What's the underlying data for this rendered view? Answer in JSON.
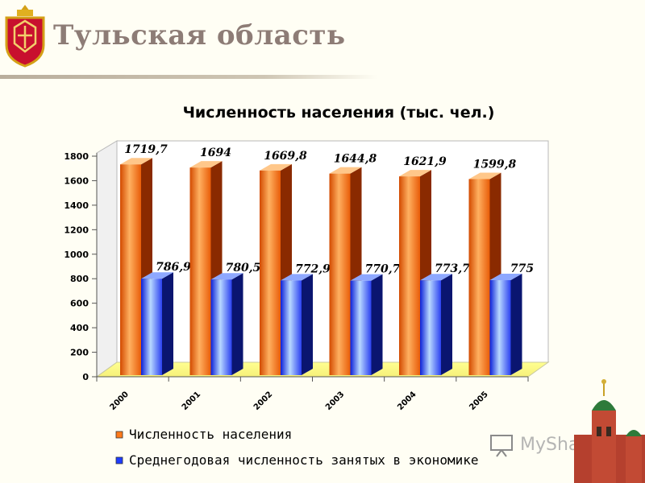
{
  "header": {
    "title": "Тульская  область"
  },
  "watermark": {
    "text": "MyShared"
  },
  "colors": {
    "orange": "#ff7a1a",
    "blue": "#1f3cff",
    "title_text": "#8d7c76"
  },
  "chart_data": {
    "type": "bar",
    "title": "Численность населения (тыс. чел.)",
    "categories": [
      "2000",
      "2001",
      "2002",
      "2003",
      "2004",
      "2005"
    ],
    "series": [
      {
        "name": "Численность населения",
        "color": "#ff7a1a",
        "values": [
          1719.7,
          1694,
          1669.8,
          1644.8,
          1621.9,
          1599.8
        ],
        "labels": [
          "1719,7",
          "1694",
          "1669,8",
          "1644,8",
          "1621,9",
          "1599,8"
        ]
      },
      {
        "name": "Среднегодовая численность занятых в экономике",
        "color": "#1f3cff",
        "values": [
          786.9,
          780.5,
          772.9,
          770.7,
          773.7,
          775
        ],
        "labels": [
          "786,9",
          "780,5",
          "772,9",
          "770,7",
          "773,7",
          "775"
        ]
      }
    ],
    "ylim": [
      0,
      1800
    ],
    "yticks": [
      "0",
      "200",
      "400",
      "600",
      "800",
      "1000",
      "1200",
      "1400",
      "1600",
      "1800"
    ],
    "grid": false,
    "legend_position": "bottom",
    "style": "3d"
  }
}
